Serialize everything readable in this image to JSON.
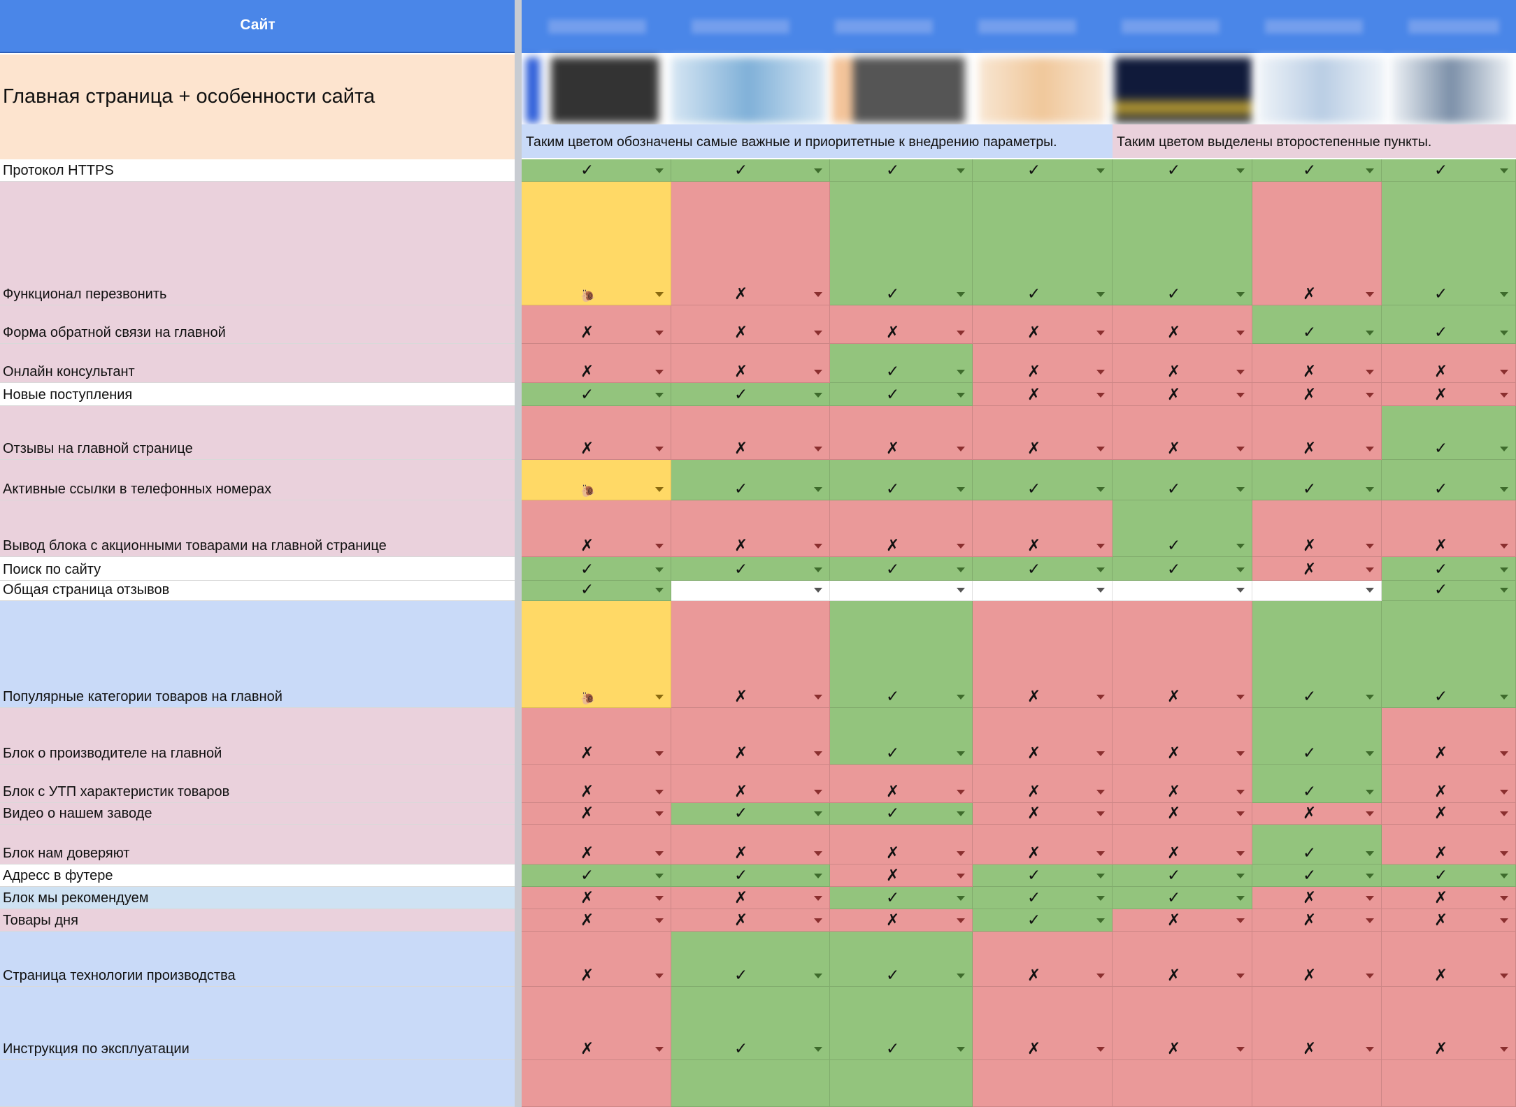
{
  "header": {
    "site_label": "Сайт"
  },
  "title": "Главная страница + особенности сайта",
  "legend": {
    "priority": "Таким цветом обозначены самые важные и приоритетные к внедрению параметры.",
    "secondary": "Таким цветом выделены второстепенные пункты."
  },
  "symbols": {
    "yes": "✓",
    "no": "✗",
    "partial": "🐌"
  },
  "colors": {
    "header_blue": "#4a86e8",
    "title_peach": "#fde4cf",
    "priority_blue": "#c9daf8",
    "secondary_pink": "#ead1dc",
    "green": "#93c47d",
    "red": "#ea9999",
    "yellow": "#ffd966"
  },
  "rows": [
    {
      "label": "Протокол HTTPS",
      "tone": "white",
      "values": [
        "yes",
        "yes",
        "yes",
        "yes",
        "yes",
        "yes",
        "yes"
      ]
    },
    {
      "label": "Функционал перезвонить",
      "tone": "pink",
      "values": [
        "partial",
        "no",
        "yes",
        "yes",
        "yes",
        "no",
        "yes"
      ]
    },
    {
      "label": "Форма обратной связи на главной",
      "tone": "pink",
      "values": [
        "no",
        "no",
        "no",
        "no",
        "no",
        "yes",
        "yes"
      ]
    },
    {
      "label": "Онлайн консультант",
      "tone": "pink",
      "values": [
        "no",
        "no",
        "yes",
        "no",
        "no",
        "no",
        "no"
      ]
    },
    {
      "label": "Новые поступления",
      "tone": "white",
      "values": [
        "yes",
        "yes",
        "yes",
        "no",
        "no",
        "no",
        "no"
      ]
    },
    {
      "label": "Отзывы на главной странице",
      "tone": "pink",
      "values": [
        "no",
        "no",
        "no",
        "no",
        "no",
        "no",
        "yes"
      ]
    },
    {
      "label": "Активные ссылки в телефонных номерах",
      "tone": "pink",
      "values": [
        "partial",
        "yes",
        "yes",
        "yes",
        "yes",
        "yes",
        "yes"
      ]
    },
    {
      "label": "Вывод блока с акционными товарами на главной странице",
      "tone": "pink",
      "values": [
        "no",
        "no",
        "no",
        "no",
        "yes",
        "no",
        "no"
      ]
    },
    {
      "label": "Поиск по сайту",
      "tone": "white",
      "values": [
        "yes",
        "yes",
        "yes",
        "yes",
        "yes",
        "no",
        "yes"
      ]
    },
    {
      "label": "Общая страница отзывов",
      "tone": "white",
      "values": [
        "yes",
        "empty",
        "empty",
        "empty",
        "empty",
        "empty",
        "yes"
      ]
    },
    {
      "label": "Популярные категории товаров на главной",
      "tone": "blue",
      "values": [
        "partial",
        "no",
        "yes",
        "no",
        "no",
        "yes",
        "yes"
      ]
    },
    {
      "label": "Блок о производителе на главной",
      "tone": "pink",
      "values": [
        "no",
        "no",
        "yes",
        "no",
        "no",
        "yes",
        "no"
      ]
    },
    {
      "label": "Блок с УТП характеристик товаров",
      "tone": "pink",
      "values": [
        "no",
        "no",
        "no",
        "no",
        "no",
        "yes",
        "no"
      ]
    },
    {
      "label": "Видео о нашем заводе",
      "tone": "pink",
      "values": [
        "no",
        "yes",
        "yes",
        "no",
        "no",
        "no",
        "no"
      ]
    },
    {
      "label": "Блок нам доверяют",
      "tone": "pink",
      "values": [
        "no",
        "no",
        "no",
        "no",
        "no",
        "yes",
        "no"
      ]
    },
    {
      "label": "Адресс в футере",
      "tone": "white",
      "values": [
        "yes",
        "yes",
        "no",
        "yes",
        "yes",
        "yes",
        "yes"
      ]
    },
    {
      "label": "Блок мы рекомендуем",
      "tone": "lightblue",
      "values": [
        "no",
        "no",
        "yes",
        "yes",
        "yes",
        "no",
        "no"
      ]
    },
    {
      "label": "Товары дня",
      "tone": "pink",
      "values": [
        "no",
        "no",
        "no",
        "yes",
        "no",
        "no",
        "no"
      ]
    },
    {
      "label": "Страница технологии производства",
      "tone": "blue",
      "values": [
        "no",
        "yes",
        "yes",
        "no",
        "no",
        "no",
        "no"
      ]
    },
    {
      "label": "Инструкция по эксплуатации",
      "tone": "blue",
      "values": [
        "no",
        "yes",
        "yes",
        "no",
        "no",
        "no",
        "no"
      ]
    },
    {
      "label": "",
      "tone": "blue",
      "values": [
        "red",
        "green",
        "green",
        "red",
        "red",
        "red",
        "red"
      ]
    }
  ]
}
